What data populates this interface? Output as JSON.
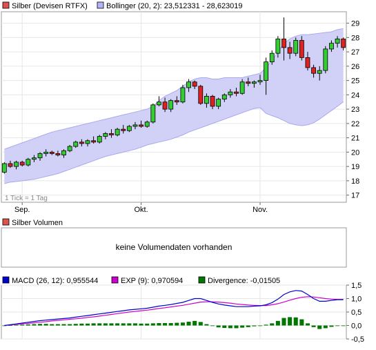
{
  "price_panel": {
    "legend": [
      {
        "swatch_color": "#d9534f",
        "label": "Silber (Devisen RTFX)"
      },
      {
        "swatch_color": "#b3b3f5",
        "label": "Bollinger (20, 2): 23,512331 - 28,623019"
      }
    ],
    "tick_note": "1 Tick = 1 Tag",
    "x_labels": [
      "Sep.",
      "Okt.",
      "Nov."
    ],
    "y_ticks": [
      "17",
      "18",
      "19",
      "20",
      "21",
      "22",
      "23",
      "24",
      "25",
      "26",
      "27",
      "28",
      "29"
    ]
  },
  "volume_panel": {
    "legend": [
      {
        "swatch_color": "#d9534f",
        "label": "Silber Volumen"
      }
    ],
    "message": "keine Volumendaten vorhanden"
  },
  "macd_panel": {
    "legend": [
      {
        "swatch_color": "#0000cc",
        "label": "MACD (26, 12): 0,955544"
      },
      {
        "swatch_color": "#cc00cc",
        "label": "EXP (9): 0,970594"
      },
      {
        "swatch_color": "#007700",
        "label": "Divergence: -0,01505"
      }
    ],
    "y_ticks": [
      "1,5",
      "1,0",
      "0,5",
      "0,0",
      "-0,5"
    ]
  },
  "colors": {
    "up_candle": "#33cc33",
    "down_candle": "#dd2222",
    "band_fill": "#ccccf7",
    "macd": "#0000cc",
    "signal": "#cc00cc",
    "divergence": "#007700"
  },
  "chart_data": [
    {
      "type": "candlestick",
      "ylim": [
        16.5,
        29.8
      ],
      "date_labels": [
        "Sep.",
        "Okt.",
        "Nov."
      ],
      "ohlc": [
        [
          18.6,
          19.3,
          18.5,
          19.2
        ],
        [
          19.2,
          19.4,
          18.9,
          19.0
        ],
        [
          19.0,
          19.4,
          18.8,
          19.3
        ],
        [
          19.3,
          19.4,
          19.0,
          19.1
        ],
        [
          19.1,
          19.6,
          19.0,
          19.5
        ],
        [
          19.5,
          19.8,
          19.3,
          19.6
        ],
        [
          19.6,
          20.0,
          19.4,
          19.9
        ],
        [
          19.9,
          20.2,
          19.7,
          20.0
        ],
        [
          20.0,
          20.1,
          19.8,
          19.9
        ],
        [
          19.9,
          20.1,
          19.7,
          19.8
        ],
        [
          19.8,
          20.2,
          19.6,
          20.1
        ],
        [
          20.1,
          20.5,
          20.0,
          20.4
        ],
        [
          20.4,
          20.8,
          20.3,
          20.7
        ],
        [
          20.7,
          20.9,
          20.4,
          20.6
        ],
        [
          20.6,
          20.9,
          20.4,
          20.8
        ],
        [
          20.8,
          21.1,
          20.6,
          20.7
        ],
        [
          20.7,
          21.2,
          20.6,
          21.1
        ],
        [
          21.1,
          21.4,
          20.9,
          21.3
        ],
        [
          21.3,
          21.6,
          21.0,
          21.2
        ],
        [
          21.2,
          21.7,
          21.1,
          21.6
        ],
        [
          21.6,
          21.9,
          21.3,
          21.5
        ],
        [
          21.5,
          21.9,
          21.4,
          21.8
        ],
        [
          21.8,
          22.1,
          21.6,
          21.9
        ],
        [
          21.9,
          22.2,
          21.7,
          21.8
        ],
        [
          21.8,
          22.2,
          21.7,
          22.1
        ],
        [
          22.1,
          23.4,
          22.0,
          23.3
        ],
        [
          23.3,
          23.9,
          23.2,
          23.5
        ],
        [
          23.5,
          23.8,
          22.8,
          23.0
        ],
        [
          23.0,
          23.7,
          22.8,
          23.6
        ],
        [
          23.6,
          23.9,
          23.3,
          23.5
        ],
        [
          23.5,
          24.7,
          23.4,
          24.5
        ],
        [
          24.5,
          25.1,
          24.2,
          24.9
        ],
        [
          24.9,
          25.0,
          24.4,
          24.6
        ],
        [
          24.6,
          24.7,
          23.3,
          23.4
        ],
        [
          23.4,
          24.1,
          23.1,
          23.9
        ],
        [
          23.9,
          24.0,
          23.0,
          23.2
        ],
        [
          23.2,
          23.8,
          23.0,
          23.7
        ],
        [
          23.7,
          24.1,
          23.5,
          24.0
        ],
        [
          24.0,
          24.4,
          23.8,
          24.2
        ],
        [
          24.2,
          24.5,
          23.9,
          24.1
        ],
        [
          24.1,
          25.1,
          24.0,
          24.9
        ],
        [
          24.9,
          25.2,
          24.6,
          24.8
        ],
        [
          24.8,
          25.0,
          24.5,
          24.9
        ],
        [
          24.9,
          25.4,
          24.7,
          25.0
        ],
        [
          25.0,
          26.6,
          24.0,
          26.3
        ],
        [
          26.3,
          27.1,
          26.1,
          26.9
        ],
        [
          26.9,
          28.1,
          26.6,
          27.9
        ],
        [
          27.9,
          29.4,
          26.4,
          27.3
        ],
        [
          27.3,
          27.7,
          26.5,
          26.9
        ],
        [
          26.9,
          28.0,
          26.7,
          27.8
        ],
        [
          27.8,
          28.1,
          26.4,
          26.6
        ],
        [
          26.6,
          27.0,
          25.7,
          25.9
        ],
        [
          25.9,
          26.1,
          25.2,
          25.5
        ],
        [
          25.5,
          26.0,
          25.0,
          25.7
        ],
        [
          25.7,
          27.4,
          25.5,
          27.2
        ],
        [
          27.2,
          27.8,
          27.0,
          27.6
        ],
        [
          27.6,
          28.1,
          27.3,
          27.9
        ],
        [
          27.9,
          28.0,
          27.1,
          27.3
        ]
      ],
      "bollinger_upper": [
        20.2,
        20.35,
        20.5,
        20.65,
        20.8,
        20.95,
        21.1,
        21.25,
        21.4,
        21.5,
        21.6,
        21.7,
        21.8,
        21.9,
        22.0,
        22.1,
        22.2,
        22.3,
        22.4,
        22.5,
        22.6,
        22.7,
        22.8,
        22.9,
        23.0,
        23.2,
        23.6,
        23.9,
        24.1,
        24.3,
        24.6,
        24.9,
        25.1,
        25.2,
        25.2,
        25.1,
        25.1,
        25.2,
        25.2,
        25.2,
        25.2,
        25.3,
        25.4,
        25.5,
        25.9,
        26.4,
        27.0,
        27.6,
        27.9,
        28.1,
        28.2,
        28.2,
        28.25,
        28.3,
        28.35,
        28.4,
        28.55,
        28.62
      ],
      "bollinger_lower": [
        17.8,
        17.9,
        17.95,
        18.0,
        18.05,
        18.1,
        18.2,
        18.3,
        18.4,
        18.5,
        18.65,
        18.8,
        18.95,
        19.1,
        19.25,
        19.4,
        19.55,
        19.7,
        19.8,
        19.9,
        20.0,
        20.1,
        20.2,
        20.35,
        20.5,
        20.6,
        20.7,
        20.8,
        20.9,
        21.05,
        21.2,
        21.4,
        21.55,
        21.7,
        21.85,
        22.0,
        22.15,
        22.3,
        22.45,
        22.6,
        22.75,
        22.9,
        23.05,
        23.1,
        22.7,
        22.55,
        22.4,
        22.2,
        22.0,
        21.9,
        21.85,
        21.9,
        22.05,
        22.3,
        22.6,
        22.9,
        23.2,
        23.51
      ]
    },
    {
      "type": "line",
      "ylim": [
        -0.5,
        1.5
      ],
      "series": [
        {
          "name": "MACD (26, 12)",
          "values": [
            0.0,
            0.03,
            0.06,
            0.09,
            0.12,
            0.15,
            0.18,
            0.2,
            0.22,
            0.24,
            0.26,
            0.28,
            0.31,
            0.34,
            0.37,
            0.4,
            0.43,
            0.46,
            0.49,
            0.52,
            0.55,
            0.58,
            0.6,
            0.62,
            0.64,
            0.68,
            0.72,
            0.75,
            0.78,
            0.82,
            0.86,
            0.93,
            1.0,
            1.0,
            0.93,
            0.86,
            0.8,
            0.76,
            0.73,
            0.7,
            0.7,
            0.7,
            0.72,
            0.73,
            0.77,
            0.85,
            0.98,
            1.15,
            1.25,
            1.3,
            1.28,
            1.15,
            1.0,
            0.9,
            0.9,
            0.93,
            0.96,
            0.956
          ]
        },
        {
          "name": "EXP (9)",
          "values": [
            0.0,
            0.02,
            0.04,
            0.06,
            0.08,
            0.1,
            0.12,
            0.14,
            0.17,
            0.19,
            0.21,
            0.23,
            0.25,
            0.27,
            0.3,
            0.32,
            0.35,
            0.38,
            0.41,
            0.44,
            0.47,
            0.5,
            0.52,
            0.55,
            0.57,
            0.6,
            0.63,
            0.66,
            0.69,
            0.72,
            0.75,
            0.79,
            0.83,
            0.87,
            0.88,
            0.88,
            0.87,
            0.85,
            0.83,
            0.8,
            0.78,
            0.76,
            0.75,
            0.74,
            0.74,
            0.77,
            0.81,
            0.87,
            0.94,
            1.0,
            1.05,
            1.07,
            1.06,
            1.03,
            1.0,
            0.98,
            0.97,
            0.971
          ]
        },
        {
          "name": "Divergence",
          "values": [
            0.0,
            0.01,
            0.02,
            0.03,
            0.04,
            0.05,
            0.06,
            0.06,
            0.05,
            0.05,
            0.05,
            0.05,
            0.06,
            0.07,
            0.07,
            0.08,
            0.08,
            0.08,
            0.08,
            0.08,
            0.08,
            0.08,
            0.08,
            0.07,
            0.07,
            0.08,
            0.09,
            0.09,
            0.09,
            0.1,
            0.11,
            0.14,
            0.17,
            0.13,
            0.05,
            -0.02,
            -0.07,
            -0.09,
            -0.1,
            -0.1,
            -0.08,
            -0.06,
            -0.03,
            -0.01,
            0.03,
            0.08,
            0.17,
            0.28,
            0.31,
            0.3,
            0.23,
            0.08,
            -0.06,
            -0.13,
            -0.1,
            -0.05,
            -0.01,
            -0.015
          ]
        }
      ]
    }
  ]
}
